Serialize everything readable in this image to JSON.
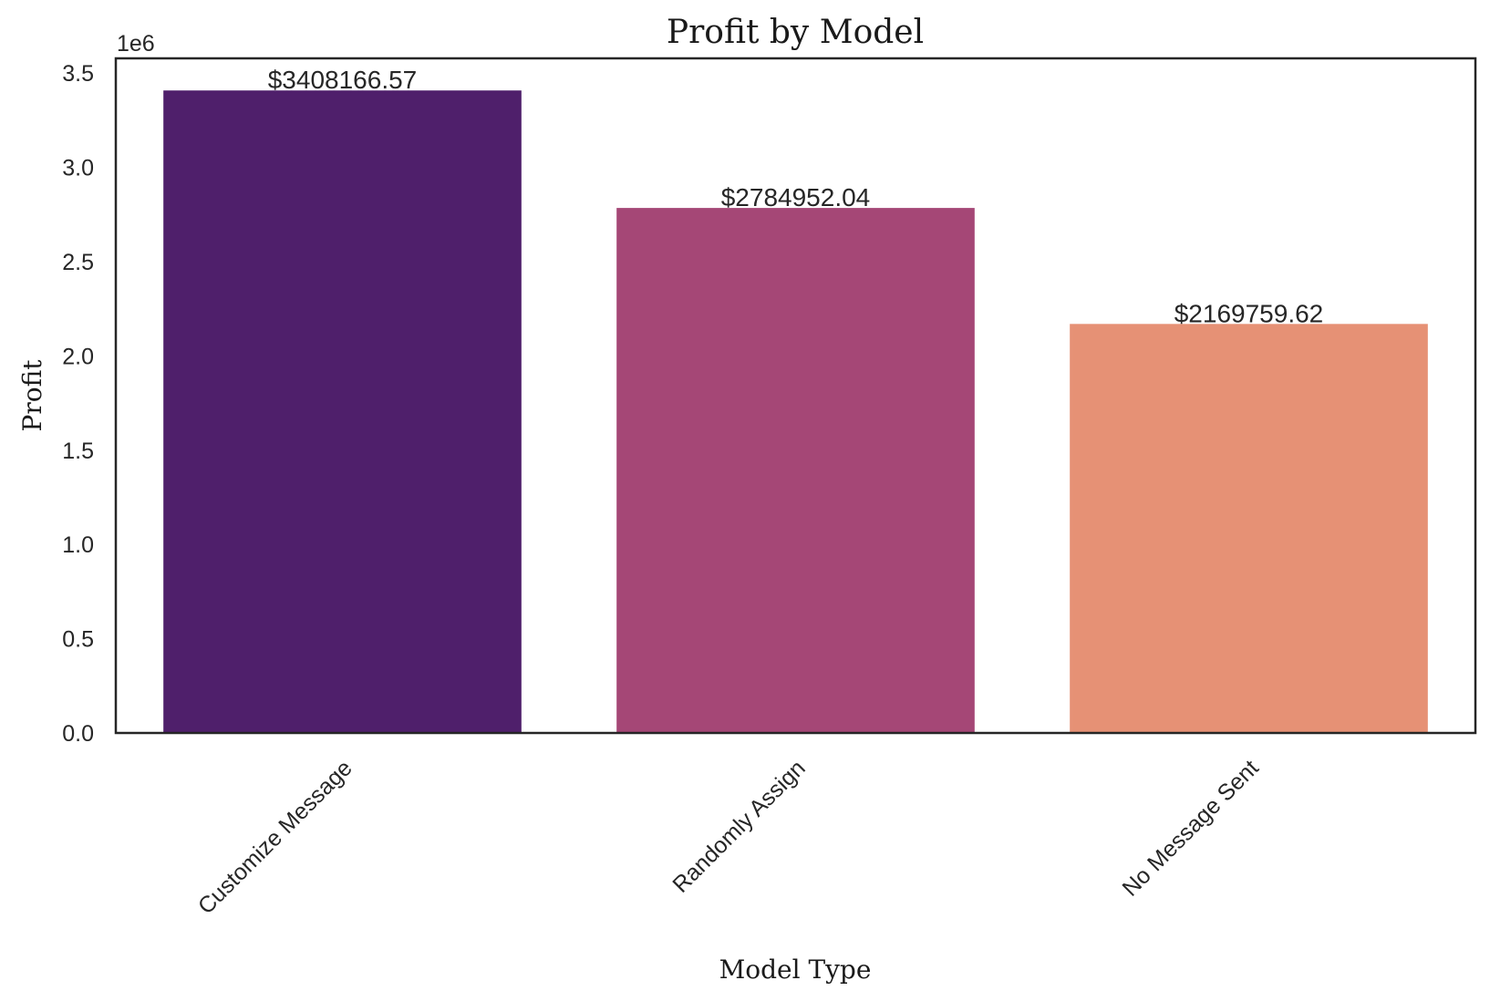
{
  "chart_data": {
    "type": "bar",
    "title": "Profit by Model",
    "xlabel": "Model Type",
    "ylabel": "Profit",
    "y_offset_label": "1e6",
    "categories": [
      "Customize Message",
      "Randomly Assign",
      "No Message Sent"
    ],
    "values": [
      3408166.57,
      2784952.04,
      2169759.62
    ],
    "value_labels": [
      "$3408166.57",
      "$2784952.04",
      "$2169759.62"
    ],
    "colors": [
      "#4f1f6b",
      "#a54776",
      "#e69175"
    ],
    "ylim": [
      0,
      3578574.9
    ],
    "yticks": [
      0,
      500000,
      1000000,
      1500000,
      2000000,
      2500000,
      3000000,
      3500000
    ],
    "ytick_labels": [
      "0.0",
      "0.5",
      "1.0",
      "1.5",
      "2.0",
      "2.5",
      "3.0",
      "3.5"
    ],
    "grid": false,
    "legend": "none"
  }
}
